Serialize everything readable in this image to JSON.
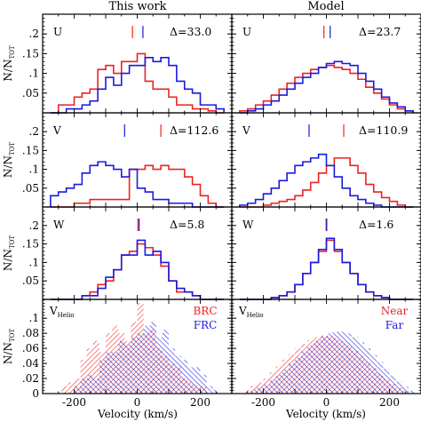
{
  "figure": {
    "column_titles": [
      "This work",
      "Model"
    ],
    "xlabel": "Velocity (km/s)",
    "ylabel_main": "N/N",
    "ylabel_sub": "TOT"
  },
  "colors": {
    "red": "#ee2222",
    "blue": "#1a1ae0",
    "axis": "#000000"
  },
  "chart_data": [
    {
      "type": "step",
      "panel": "this-work-U",
      "label": "U",
      "delta": "Δ=33.0",
      "x_bin_edges": [
        -275,
        -250,
        -225,
        -200,
        -175,
        -150,
        -125,
        -100,
        -75,
        -50,
        -25,
        0,
        25,
        50,
        75,
        100,
        125,
        150,
        175,
        200,
        225,
        250,
        275
      ],
      "xlim": [
        -300,
        300
      ],
      "ylim": [
        0,
        0.25
      ],
      "yticks": [
        0,
        0.05,
        0.1,
        0.15,
        0.2
      ],
      "series": [
        {
          "color": "red",
          "values": [
            0,
            0.02,
            0.02,
            0.04,
            0.05,
            0.06,
            0.11,
            0.12,
            0.1,
            0.13,
            0.13,
            0.15,
            0.08,
            0.06,
            0.06,
            0.04,
            0.02,
            0.02,
            0.01,
            0.01,
            0.005,
            0
          ]
        },
        {
          "color": "blue",
          "values": [
            0,
            0,
            0.01,
            0.01,
            0.02,
            0.03,
            0.06,
            0.09,
            0.07,
            0.1,
            0.12,
            0.12,
            0.14,
            0.13,
            0.14,
            0.12,
            0.08,
            0.06,
            0.05,
            0.02,
            0.02,
            0.01
          ]
        }
      ],
      "markers": [
        {
          "color": "red",
          "x": -15
        },
        {
          "color": "blue",
          "x": 18
        }
      ]
    },
    {
      "type": "step",
      "panel": "model-U",
      "label": "U",
      "delta": "Δ=23.7",
      "x_bin_edges": [
        -275,
        -250,
        -225,
        -200,
        -175,
        -150,
        -125,
        -100,
        -75,
        -50,
        -25,
        0,
        25,
        50,
        75,
        100,
        125,
        150,
        175,
        200,
        225,
        250,
        275
      ],
      "xlim": [
        -300,
        300
      ],
      "ylim": [
        0,
        0.25
      ],
      "yticks": [
        0,
        0.05,
        0.1,
        0.15,
        0.2
      ],
      "series": [
        {
          "color": "red",
          "values": [
            0.005,
            0.01,
            0.02,
            0.03,
            0.045,
            0.06,
            0.075,
            0.09,
            0.1,
            0.11,
            0.115,
            0.12,
            0.115,
            0.11,
            0.1,
            0.085,
            0.065,
            0.05,
            0.035,
            0.02,
            0.01,
            0.005
          ]
        },
        {
          "color": "blue",
          "values": [
            0,
            0.005,
            0.01,
            0.02,
            0.03,
            0.045,
            0.06,
            0.075,
            0.09,
            0.1,
            0.115,
            0.125,
            0.13,
            0.125,
            0.12,
            0.1,
            0.08,
            0.06,
            0.04,
            0.025,
            0.015,
            0.005
          ]
        }
      ],
      "markers": [
        {
          "color": "red",
          "x": -8
        },
        {
          "color": "blue",
          "x": 12
        }
      ]
    },
    {
      "type": "step",
      "panel": "this-work-V",
      "label": "V",
      "delta": "Δ=112.6",
      "x_bin_edges": [
        -275,
        -250,
        -225,
        -200,
        -175,
        -150,
        -125,
        -100,
        -75,
        -50,
        -25,
        0,
        25,
        50,
        75,
        100,
        125,
        150,
        175,
        200,
        225,
        250,
        275
      ],
      "xlim": [
        -300,
        300
      ],
      "ylim": [
        0,
        0.25
      ],
      "yticks": [
        0,
        0.05,
        0.1,
        0.15,
        0.2
      ],
      "series": [
        {
          "color": "red",
          "values": [
            0,
            0,
            0,
            0.01,
            0.01,
            0.02,
            0.02,
            0.02,
            0.02,
            0.02,
            0.1,
            0.1,
            0.11,
            0.1,
            0.11,
            0.1,
            0.1,
            0.08,
            0.06,
            0.03,
            0.01,
            0
          ]
        },
        {
          "color": "blue",
          "values": [
            0.03,
            0.04,
            0.05,
            0.06,
            0.09,
            0.11,
            0.12,
            0.11,
            0.1,
            0.08,
            0.1,
            0.05,
            0.04,
            0.02,
            0.02,
            0.01,
            0.01,
            0.01,
            0,
            0,
            0,
            0
          ]
        }
      ],
      "markers": [
        {
          "color": "blue",
          "x": -40
        },
        {
          "color": "red",
          "x": 75
        }
      ]
    },
    {
      "type": "step",
      "panel": "model-V",
      "label": "V",
      "delta": "Δ=110.9",
      "x_bin_edges": [
        -275,
        -250,
        -225,
        -200,
        -175,
        -150,
        -125,
        -100,
        -75,
        -50,
        -25,
        0,
        25,
        50,
        75,
        100,
        125,
        150,
        175,
        200,
        225,
        250,
        275
      ],
      "xlim": [
        -300,
        300
      ],
      "ylim": [
        0,
        0.25
      ],
      "yticks": [
        0,
        0.05,
        0.1,
        0.15,
        0.2
      ],
      "series": [
        {
          "color": "red",
          "values": [
            0,
            0,
            0,
            0.005,
            0.01,
            0.015,
            0.02,
            0.03,
            0.045,
            0.065,
            0.09,
            0.11,
            0.13,
            0.13,
            0.11,
            0.09,
            0.06,
            0.04,
            0.025,
            0.015,
            0.005,
            0
          ]
        },
        {
          "color": "blue",
          "values": [
            0.005,
            0.01,
            0.02,
            0.035,
            0.05,
            0.07,
            0.09,
            0.11,
            0.12,
            0.13,
            0.14,
            0.11,
            0.08,
            0.05,
            0.03,
            0.02,
            0.01,
            0.005,
            0,
            0,
            0,
            0
          ]
        }
      ],
      "markers": [
        {
          "color": "blue",
          "x": -55
        },
        {
          "color": "red",
          "x": 55
        }
      ]
    },
    {
      "type": "step",
      "panel": "this-work-W",
      "label": "W",
      "delta": "Δ=5.8",
      "x_bin_edges": [
        -275,
        -250,
        -225,
        -200,
        -175,
        -150,
        -125,
        -100,
        -75,
        -50,
        -25,
        0,
        25,
        50,
        75,
        100,
        125,
        150,
        175,
        200,
        225,
        250,
        275
      ],
      "xlim": [
        -300,
        300
      ],
      "ylim": [
        0,
        0.25
      ],
      "yticks": [
        0,
        0.05,
        0.1,
        0.15,
        0.2
      ],
      "series": [
        {
          "color": "red",
          "values": [
            0,
            0,
            0,
            0,
            0.01,
            0.02,
            0.04,
            0.05,
            0.08,
            0.12,
            0.13,
            0.15,
            0.14,
            0.12,
            0.09,
            0.05,
            0.02,
            0.02,
            0.01,
            0,
            0,
            0
          ]
        },
        {
          "color": "blue",
          "values": [
            0,
            0,
            0,
            0,
            0.01,
            0.01,
            0.03,
            0.06,
            0.08,
            0.12,
            0.12,
            0.16,
            0.12,
            0.13,
            0.1,
            0.05,
            0.03,
            0.02,
            0.01,
            0,
            0,
            0
          ]
        }
      ],
      "markers": [
        {
          "color": "red",
          "x": 2
        },
        {
          "color": "blue",
          "x": 6
        }
      ]
    },
    {
      "type": "step",
      "panel": "model-W",
      "label": "W",
      "delta": "Δ=1.6",
      "x_bin_edges": [
        -275,
        -250,
        -225,
        -200,
        -175,
        -150,
        -125,
        -100,
        -75,
        -50,
        -25,
        0,
        25,
        50,
        75,
        100,
        125,
        150,
        175,
        200,
        225,
        250,
        275
      ],
      "xlim": [
        -300,
        300
      ],
      "ylim": [
        0,
        0.25
      ],
      "yticks": [
        0,
        0.05,
        0.1,
        0.15,
        0.2
      ],
      "series": [
        {
          "color": "red",
          "values": [
            0,
            0,
            0,
            0,
            0.005,
            0.01,
            0.02,
            0.04,
            0.07,
            0.1,
            0.13,
            0.16,
            0.13,
            0.1,
            0.07,
            0.04,
            0.02,
            0.01,
            0.005,
            0,
            0,
            0
          ]
        },
        {
          "color": "blue",
          "values": [
            0,
            0,
            0,
            0,
            0.005,
            0.01,
            0.02,
            0.04,
            0.07,
            0.1,
            0.135,
            0.165,
            0.135,
            0.1,
            0.07,
            0.04,
            0.02,
            0.01,
            0.005,
            0,
            0,
            0
          ]
        }
      ],
      "markers": [
        {
          "color": "red",
          "x": -1
        },
        {
          "color": "blue",
          "x": 1
        }
      ]
    },
    {
      "type": "hatched-bar",
      "panel": "this-work-vhelio",
      "label": "V",
      "label_sub": "Helio",
      "legend": [
        {
          "color": "red",
          "text": "BRC"
        },
        {
          "color": "blue",
          "text": "FRC"
        }
      ],
      "x_bin_edges": [
        -280,
        -260,
        -240,
        -220,
        -200,
        -180,
        -160,
        -140,
        -120,
        -100,
        -80,
        -60,
        -40,
        -20,
        0,
        20,
        40,
        60,
        80,
        100,
        120,
        140,
        160,
        180,
        200,
        220,
        240,
        260,
        280
      ],
      "xlim": [
        -300,
        300
      ],
      "ylim": [
        0,
        0.125
      ],
      "yticks": [
        0,
        0.02,
        0.04,
        0.06,
        0.08,
        0.1
      ],
      "xticks": [
        -200,
        0,
        200
      ],
      "series": [
        {
          "color": "red",
          "values": [
            0,
            0,
            0.01,
            0.015,
            0.02,
            0.045,
            0.06,
            0.07,
            0.055,
            0.08,
            0.09,
            0.08,
            0.07,
            0.095,
            0.12,
            0.08,
            0.085,
            0.06,
            0.05,
            0.04,
            0.035,
            0.02,
            0.015,
            0.01,
            0.01,
            0,
            0,
            0
          ]
        },
        {
          "color": "blue",
          "values": [
            0,
            0,
            0,
            0,
            0.01,
            0.02,
            0.025,
            0.02,
            0.045,
            0.055,
            0.055,
            0.07,
            0.065,
            0.075,
            0.08,
            0.09,
            0.095,
            0.075,
            0.085,
            0.06,
            0.05,
            0.045,
            0.035,
            0.035,
            0.025,
            0.01,
            0.005,
            0
          ]
        }
      ]
    },
    {
      "type": "hatched-bar",
      "panel": "model-vhelio",
      "label": "V",
      "label_sub": "Helio",
      "legend": [
        {
          "color": "red",
          "text": "Near"
        },
        {
          "color": "blue",
          "text": "Far"
        }
      ],
      "x_bin_edges": [
        -280,
        -260,
        -240,
        -220,
        -200,
        -180,
        -160,
        -140,
        -120,
        -100,
        -80,
        -60,
        -40,
        -20,
        0,
        20,
        40,
        60,
        80,
        100,
        120,
        140,
        160,
        180,
        200,
        220,
        240,
        260,
        280
      ],
      "xlim": [
        -300,
        300
      ],
      "ylim": [
        0,
        0.125
      ],
      "yticks": [
        0,
        0.02,
        0.04,
        0.06,
        0.08,
        0.1
      ],
      "xticks": [
        -200,
        0,
        200
      ],
      "series": [
        {
          "color": "red",
          "values": [
            0,
            0.005,
            0.01,
            0.015,
            0.02,
            0.028,
            0.036,
            0.045,
            0.052,
            0.06,
            0.066,
            0.071,
            0.075,
            0.077,
            0.077,
            0.074,
            0.07,
            0.064,
            0.057,
            0.05,
            0.042,
            0.034,
            0.026,
            0.019,
            0.013,
            0.008,
            0.004,
            0
          ]
        },
        {
          "color": "blue",
          "values": [
            0,
            0,
            0.005,
            0.008,
            0.012,
            0.018,
            0.025,
            0.032,
            0.04,
            0.048,
            0.056,
            0.064,
            0.07,
            0.076,
            0.08,
            0.082,
            0.082,
            0.08,
            0.075,
            0.068,
            0.06,
            0.051,
            0.042,
            0.033,
            0.024,
            0.016,
            0.009,
            0.004
          ]
        }
      ]
    }
  ]
}
